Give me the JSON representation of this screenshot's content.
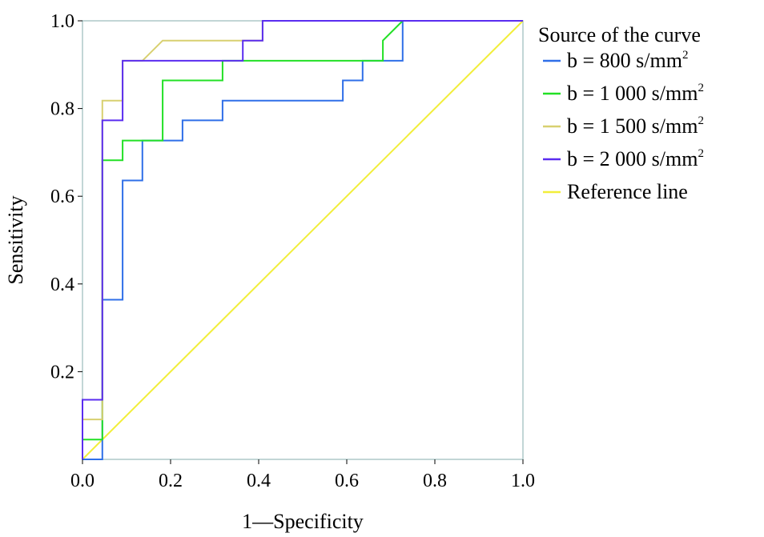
{
  "chart_data": {
    "type": "line",
    "xlabel": "1—Specificity",
    "ylabel": "Sensitivity",
    "xlim": [
      0,
      1
    ],
    "ylim": [
      0,
      1
    ],
    "x_ticks": [
      "0.0",
      "0.2",
      "0.4",
      "0.6",
      "0.8",
      "1.0"
    ],
    "y_ticks": [
      "0.2",
      "0.4",
      "0.6",
      "0.8",
      "1.0"
    ],
    "legend_title": "Source of the curve",
    "legend_position": "right",
    "series": [
      {
        "name": "b = 800 s/mm2",
        "label_main": "b = 800 s/mm",
        "label_sup": "2",
        "color": "#2f6fe8",
        "points": [
          [
            0,
            0
          ],
          [
            0.045,
            0
          ],
          [
            0.045,
            0.364
          ],
          [
            0.091,
            0.364
          ],
          [
            0.091,
            0.636
          ],
          [
            0.136,
            0.636
          ],
          [
            0.136,
            0.727
          ],
          [
            0.227,
            0.727
          ],
          [
            0.227,
            0.773
          ],
          [
            0.318,
            0.773
          ],
          [
            0.318,
            0.818
          ],
          [
            0.591,
            0.818
          ],
          [
            0.591,
            0.864
          ],
          [
            0.636,
            0.864
          ],
          [
            0.636,
            0.909
          ],
          [
            0.727,
            0.909
          ],
          [
            0.727,
            1
          ],
          [
            1,
            1
          ]
        ]
      },
      {
        "name": "b = 1 000 s/mm2",
        "label_main": "b = 1 000 s/mm",
        "label_sup": "2",
        "color": "#22e025",
        "points": [
          [
            0,
            0
          ],
          [
            0,
            0.045
          ],
          [
            0.045,
            0.045
          ],
          [
            0.045,
            0.682
          ],
          [
            0.091,
            0.682
          ],
          [
            0.091,
            0.727
          ],
          [
            0.182,
            0.727
          ],
          [
            0.182,
            0.864
          ],
          [
            0.318,
            0.864
          ],
          [
            0.318,
            0.909
          ],
          [
            0.682,
            0.909
          ],
          [
            0.682,
            0.955
          ],
          [
            0.727,
            1
          ],
          [
            1,
            1
          ]
        ]
      },
      {
        "name": "b = 1 500 s/mm2",
        "label_main": "b = 1 500 s/mm",
        "label_sup": "2",
        "color": "#d8d070",
        "points": [
          [
            0,
            0
          ],
          [
            0,
            0.091
          ],
          [
            0.045,
            0.091
          ],
          [
            0.045,
            0.818
          ],
          [
            0.091,
            0.818
          ],
          [
            0.091,
            0.909
          ],
          [
            0.136,
            0.909
          ],
          [
            0.182,
            0.955
          ],
          [
            0.409,
            0.955
          ],
          [
            0.409,
            1
          ],
          [
            1,
            1
          ]
        ]
      },
      {
        "name": "b = 2 000 s/mm2",
        "label_main": "b = 2 000 s/mm",
        "label_sup": "2",
        "color": "#5a2cf0",
        "points": [
          [
            0,
            0
          ],
          [
            0,
            0.136
          ],
          [
            0.045,
            0.136
          ],
          [
            0.045,
            0.773
          ],
          [
            0.091,
            0.773
          ],
          [
            0.091,
            0.909
          ],
          [
            0.364,
            0.909
          ],
          [
            0.364,
            0.955
          ],
          [
            0.409,
            0.955
          ],
          [
            0.409,
            1
          ],
          [
            1,
            1
          ]
        ]
      },
      {
        "name": "Reference line",
        "label_main": "Reference line",
        "label_sup": "",
        "color": "#f2ee3a",
        "points": [
          [
            0,
            0
          ],
          [
            1,
            1
          ]
        ]
      }
    ]
  }
}
